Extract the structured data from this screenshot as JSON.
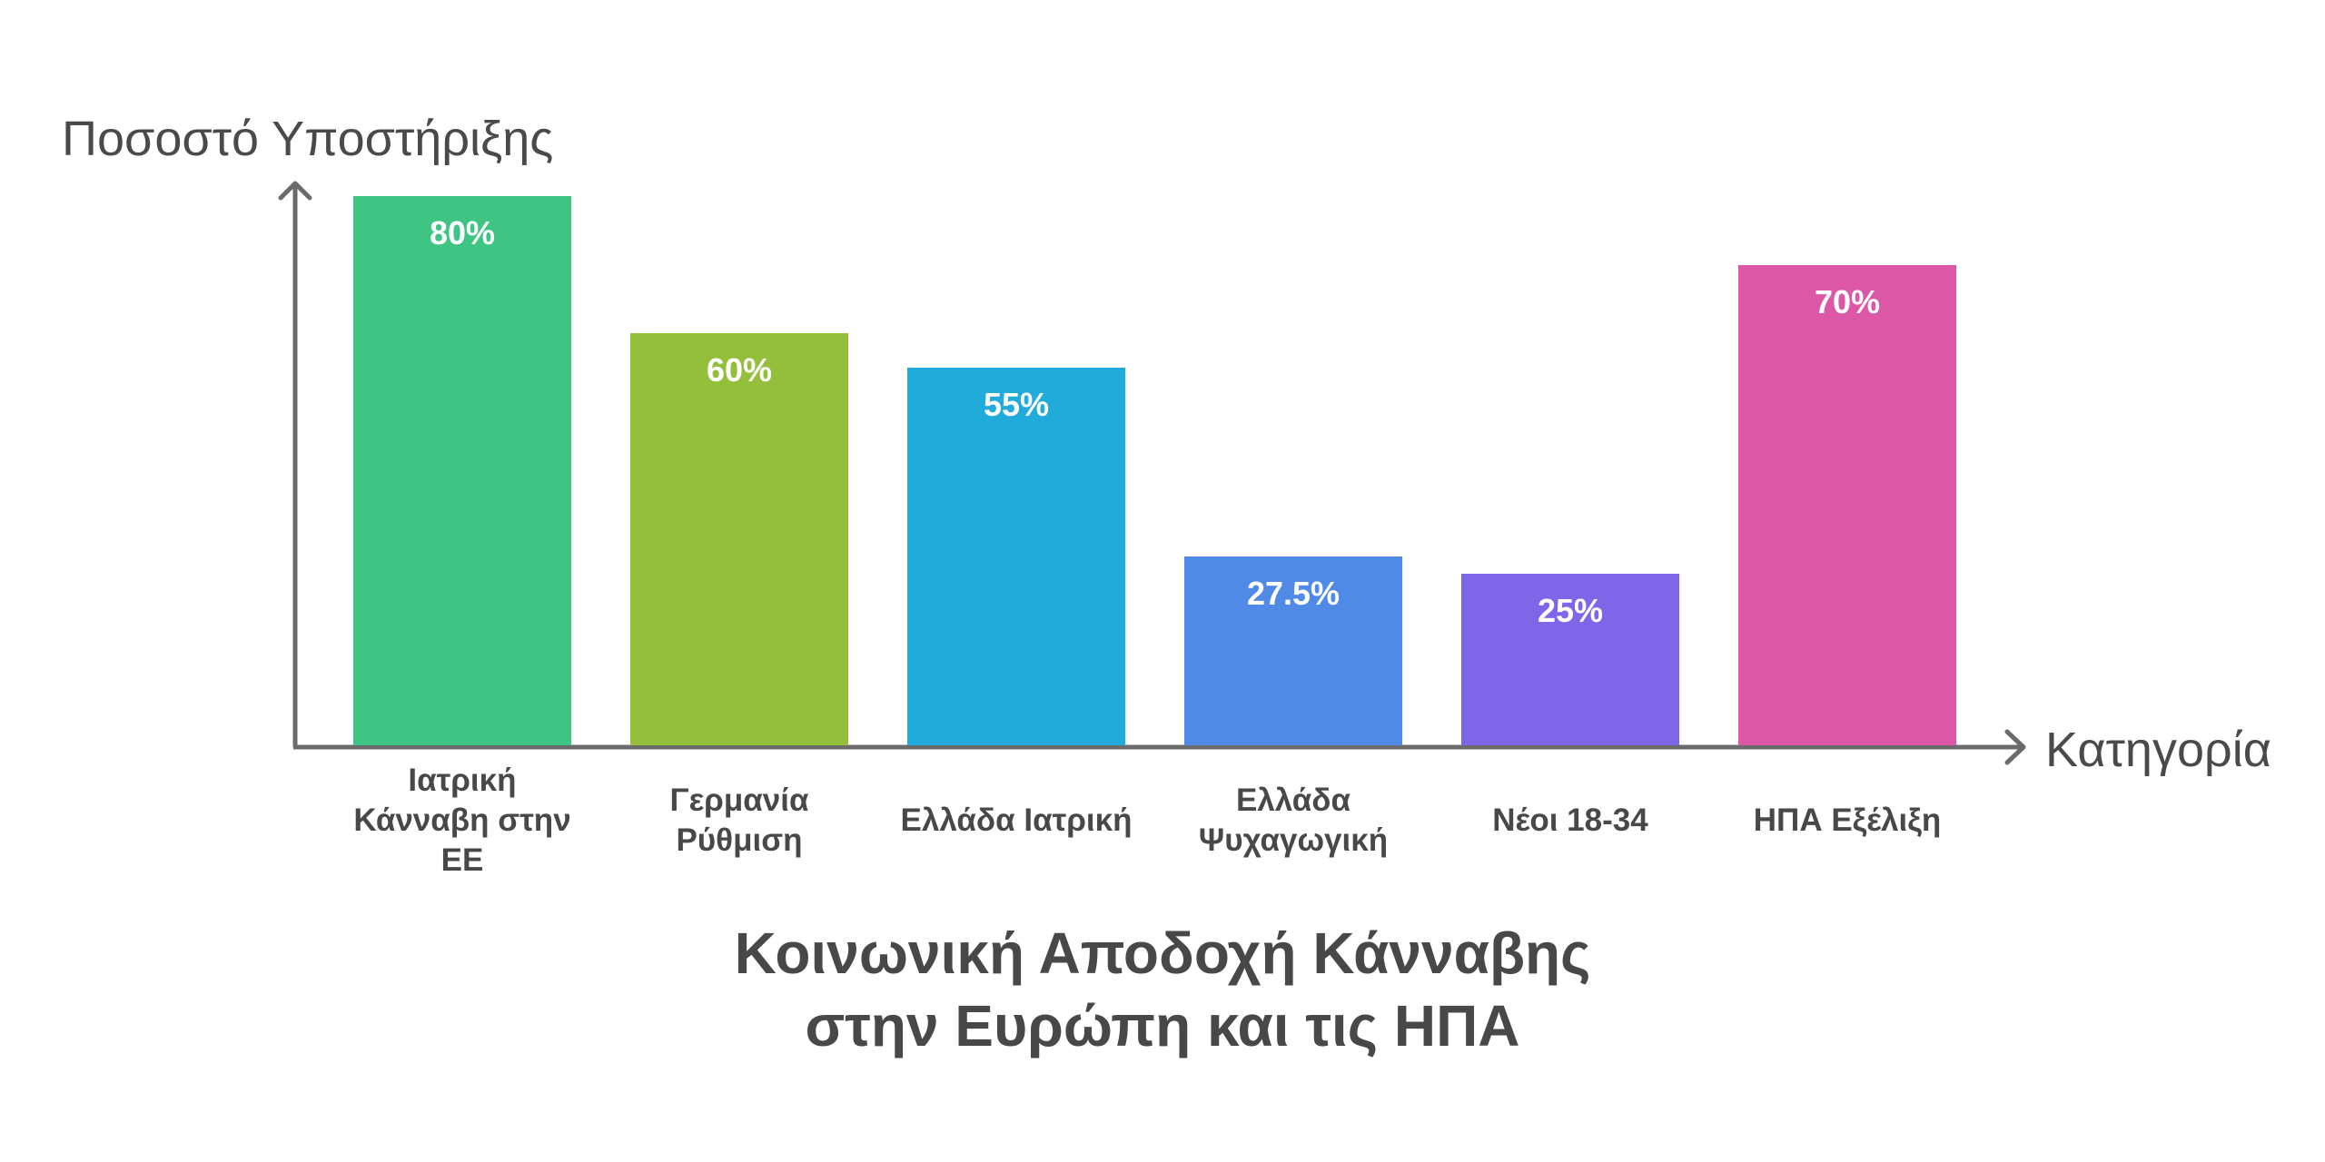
{
  "chart_data": {
    "type": "bar",
    "title": "Κοινωνική Αποδοχή Κάνναβης στην Ευρώπη και τις ΗΠΑ",
    "title_lines": [
      "Κοινωνική Αποδοχή Κάνναβης",
      "στην Ευρώπη και τις ΗΠΑ"
    ],
    "xlabel": "Κατηγορία",
    "ylabel": "Ποσοστό Υποστήριξης",
    "categories": [
      "Ιατρική Κάνναβη στην ΕΕ",
      "Γερμανία Ρύθμιση",
      "Ελλάδα Ιατρική",
      "Ελλάδα Ψυχαγωγική",
      "Νέοι 18-34",
      "ΗΠΑ Εξέλιξη"
    ],
    "values": [
      80,
      60,
      55,
      27.5,
      25,
      70
    ],
    "value_labels": [
      "80%",
      "60%",
      "55%",
      "27.5%",
      "25%",
      "70%"
    ],
    "colors": [
      "#3ec584",
      "#94bf3b",
      "#21abdb",
      "#4f8ae6",
      "#7f66e8",
      "#dd57a7"
    ],
    "ylim": [
      0,
      80
    ],
    "grid": false,
    "legend": "none",
    "y_ticks": "none"
  },
  "bars": [
    {
      "label_lines": [
        "Ιατρική",
        "Κάνναβη στην",
        "ΕΕ"
      ],
      "value_label": "80%",
      "value": 80,
      "color": "#3ec584"
    },
    {
      "label_lines": [
        "Γερμανία",
        "Ρύθμιση"
      ],
      "value_label": "60%",
      "value": 60,
      "color": "#94bf3b"
    },
    {
      "label_lines": [
        "Ελλάδα Ιατρική"
      ],
      "value_label": "55%",
      "value": 55,
      "color": "#21abdb"
    },
    {
      "label_lines": [
        "Ελλάδα",
        "Ψυχαγωγική"
      ],
      "value_label": "27.5%",
      "value": 27.5,
      "color": "#4f8ae6"
    },
    {
      "label_lines": [
        "Νέοι 18-34"
      ],
      "value_label": "25%",
      "value": 25,
      "color": "#7f66e8"
    },
    {
      "label_lines": [
        "ΗΠΑ Εξέλιξη"
      ],
      "value_label": "70%",
      "value": 70,
      "color": "#dd57a7"
    }
  ],
  "axis_color": "#6b6b6b",
  "text_color": "#484848"
}
